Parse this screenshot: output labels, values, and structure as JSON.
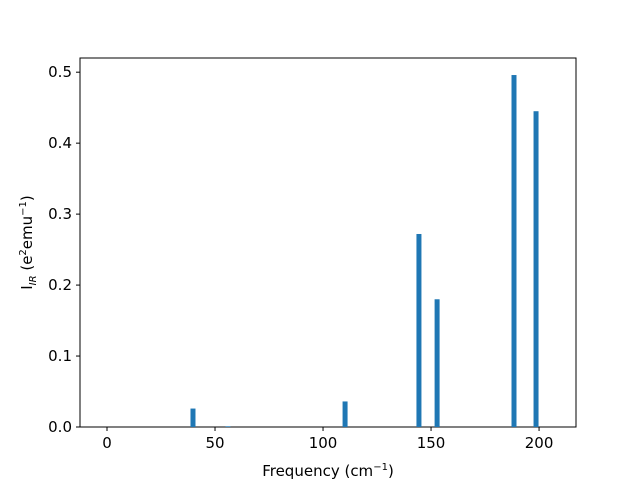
{
  "chart_data": {
    "type": "bar",
    "x": [
      39.8,
      56,
      110.2,
      144.4,
      152.8,
      188.4,
      198.6
    ],
    "values": [
      0.026,
      0.001,
      0.036,
      0.272,
      0.18,
      0.496,
      0.445
    ],
    "color": "#1f77b4",
    "xlabel": [
      "Frequency (cm",
      "−1",
      ")"
    ],
    "ylabel": [
      "I",
      "IR",
      " (e",
      "2",
      "emu",
      "−1",
      ")"
    ],
    "xlim": [
      -12.5,
      217.1
    ],
    "xticks": [
      0,
      50,
      100,
      150,
      200
    ],
    "ylim": [
      0,
      0.52
    ],
    "yticks": [
      {
        "value": 0,
        "label": "0.0"
      },
      0.1,
      0.2,
      0.3,
      0.4,
      0.5
    ]
  }
}
